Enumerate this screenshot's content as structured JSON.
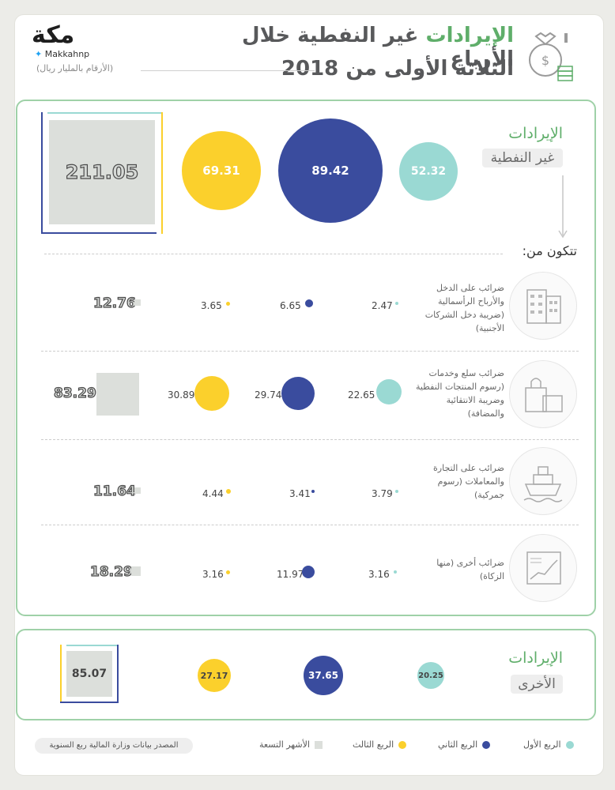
{
  "header": {
    "title_green": "الإيرادات",
    "title_rest": " غير النفطية خلال الأرباع",
    "title_line2": "الثلاثة الأولى من 2018",
    "unit_note": "(الأرقام بالمليار ريال)",
    "logo_text": "مكة",
    "handle": "Makkahnp"
  },
  "non_oil": {
    "label_line1": "الإيرادات",
    "label_line2": "غير النفطية",
    "q1": "52.32",
    "q2": "89.42",
    "q3": "69.31",
    "nine_months": "211.05",
    "consists_of": "تتكون من:"
  },
  "categories": [
    {
      "name": "ضرائب على الدخل والأرباح الرأسمالية (ضريبة دخل الشركات الأجنبية)",
      "q1": "2.47",
      "q2": "6.65",
      "q3": "3.65",
      "nine_months": "12.76",
      "icon": "building-icon"
    },
    {
      "name": "ضرائب سلع وخدمات (رسوم المنتجات النفطية وضريبة الانتقائية والمضافة)",
      "q1": "22.65",
      "q2": "29.74",
      "q3": "30.89",
      "nine_months": "83.29",
      "icon": "shopping-bag-icon"
    },
    {
      "name": "ضرائب على التجارة والمعاملات (رسوم جمركية)",
      "q1": "3.79",
      "q2": "3.41",
      "q3": "4.44",
      "nine_months": "11.64",
      "icon": "ship-icon"
    },
    {
      "name": "ضرائب أخرى (منها الزكاة)",
      "q1": "3.16",
      "q2": "11.97",
      "q3": "3.16",
      "nine_months": "18.29",
      "icon": "chart-icon"
    }
  ],
  "other": {
    "label_line1": "الإيرادات",
    "label_line2": "الأخرى",
    "q1": "20.25",
    "q2": "37.65",
    "q3": "27.17",
    "nine_months": "85.07"
  },
  "legend": {
    "q1": "الربع الأول",
    "q2": "الربع الثاني",
    "q3": "الربع الثالث",
    "nine_months": "الأشهر التسعة"
  },
  "source": "المصدر بيانات وزارة المالية ربع السنوية",
  "colors": {
    "q1": "#9ad9d3",
    "q2": "#3a4c9e",
    "q3": "#fbd02c",
    "nine_months": "#dcdfdb",
    "accent": "#5fae6a"
  }
}
